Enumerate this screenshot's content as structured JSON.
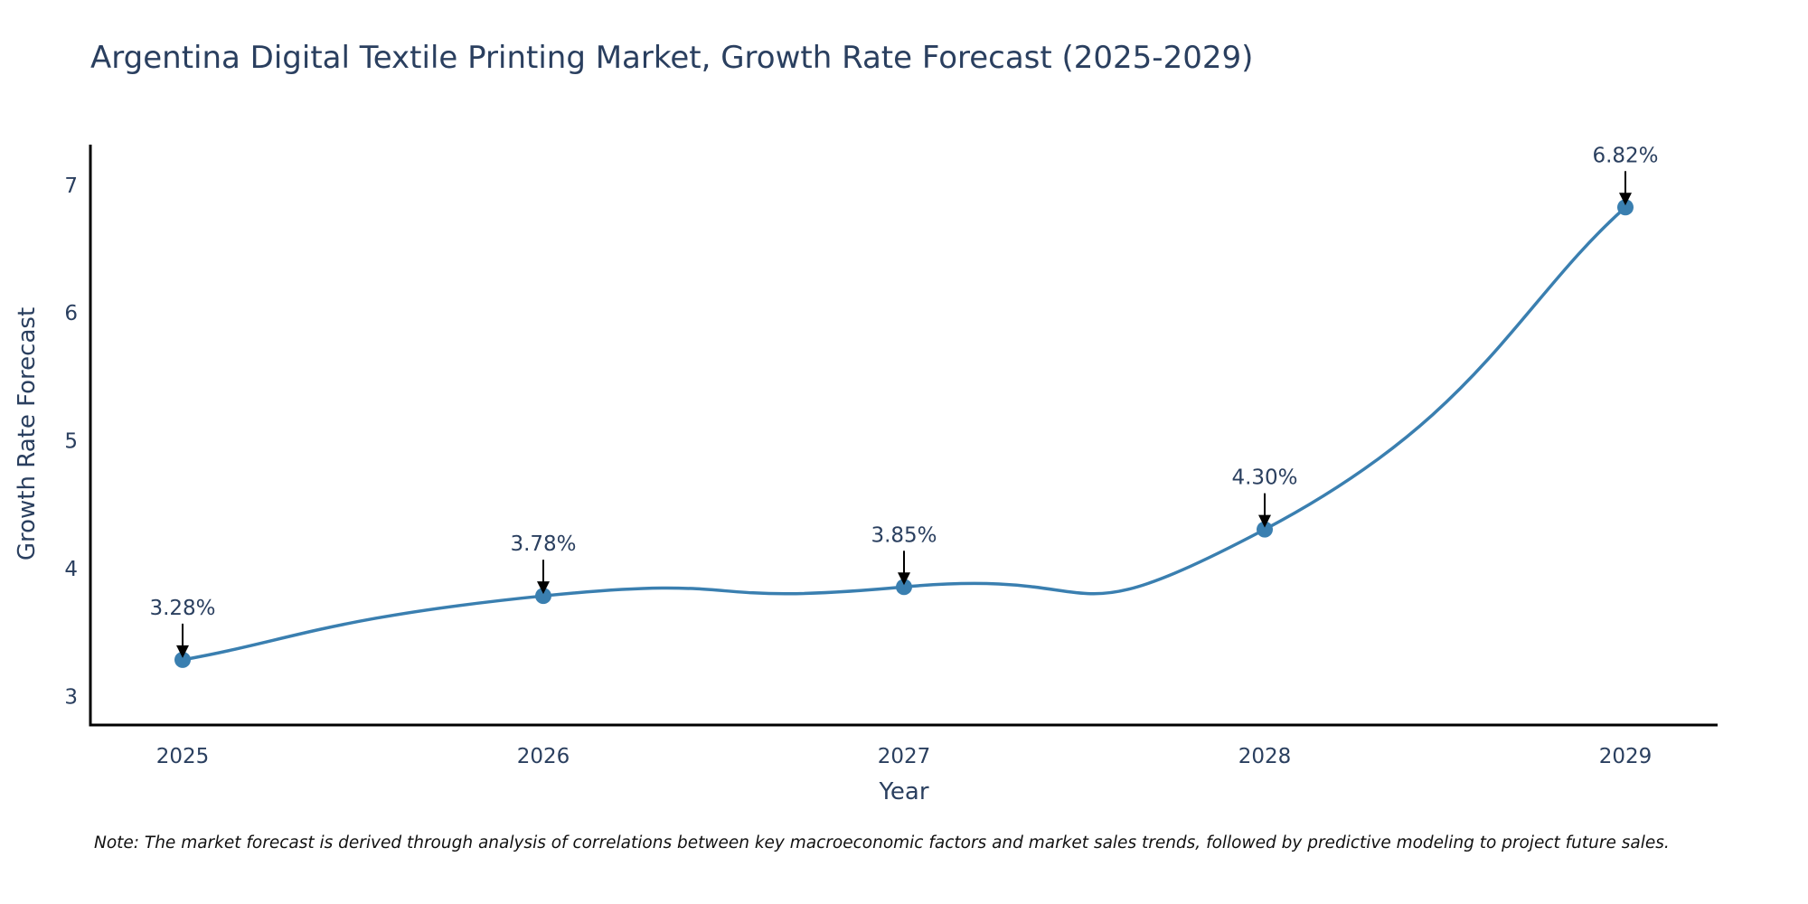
{
  "chart_data": {
    "type": "line",
    "title": "Argentina Digital Textile Printing Market, Growth Rate Forecast (2025-2029)",
    "xlabel": "Year",
    "ylabel": "Growth Rate Forecast",
    "categories": [
      "2025",
      "2026",
      "2027",
      "2028",
      "2029"
    ],
    "values": [
      3.28,
      3.78,
      3.85,
      4.3,
      6.82
    ],
    "data_labels": [
      "3.28%",
      "3.78%",
      "3.85%",
      "4.30%",
      "6.82%"
    ],
    "yticks": [
      3,
      4,
      5,
      6,
      7
    ],
    "ytick_labels": [
      "3",
      "4",
      "5",
      "6",
      "7"
    ],
    "ylim": [
      2.77,
      7.31
    ],
    "grid": false,
    "line_shape": "spline",
    "colors": {
      "line": "#3a7fb0",
      "marker": "#3a7fb0",
      "arrow": "#000000",
      "axis": "#000000"
    }
  },
  "footnote": "Note: The market forecast is derived through analysis of correlations between key macroeconomic factors and market sales trends, followed by predictive modeling to project future sales."
}
